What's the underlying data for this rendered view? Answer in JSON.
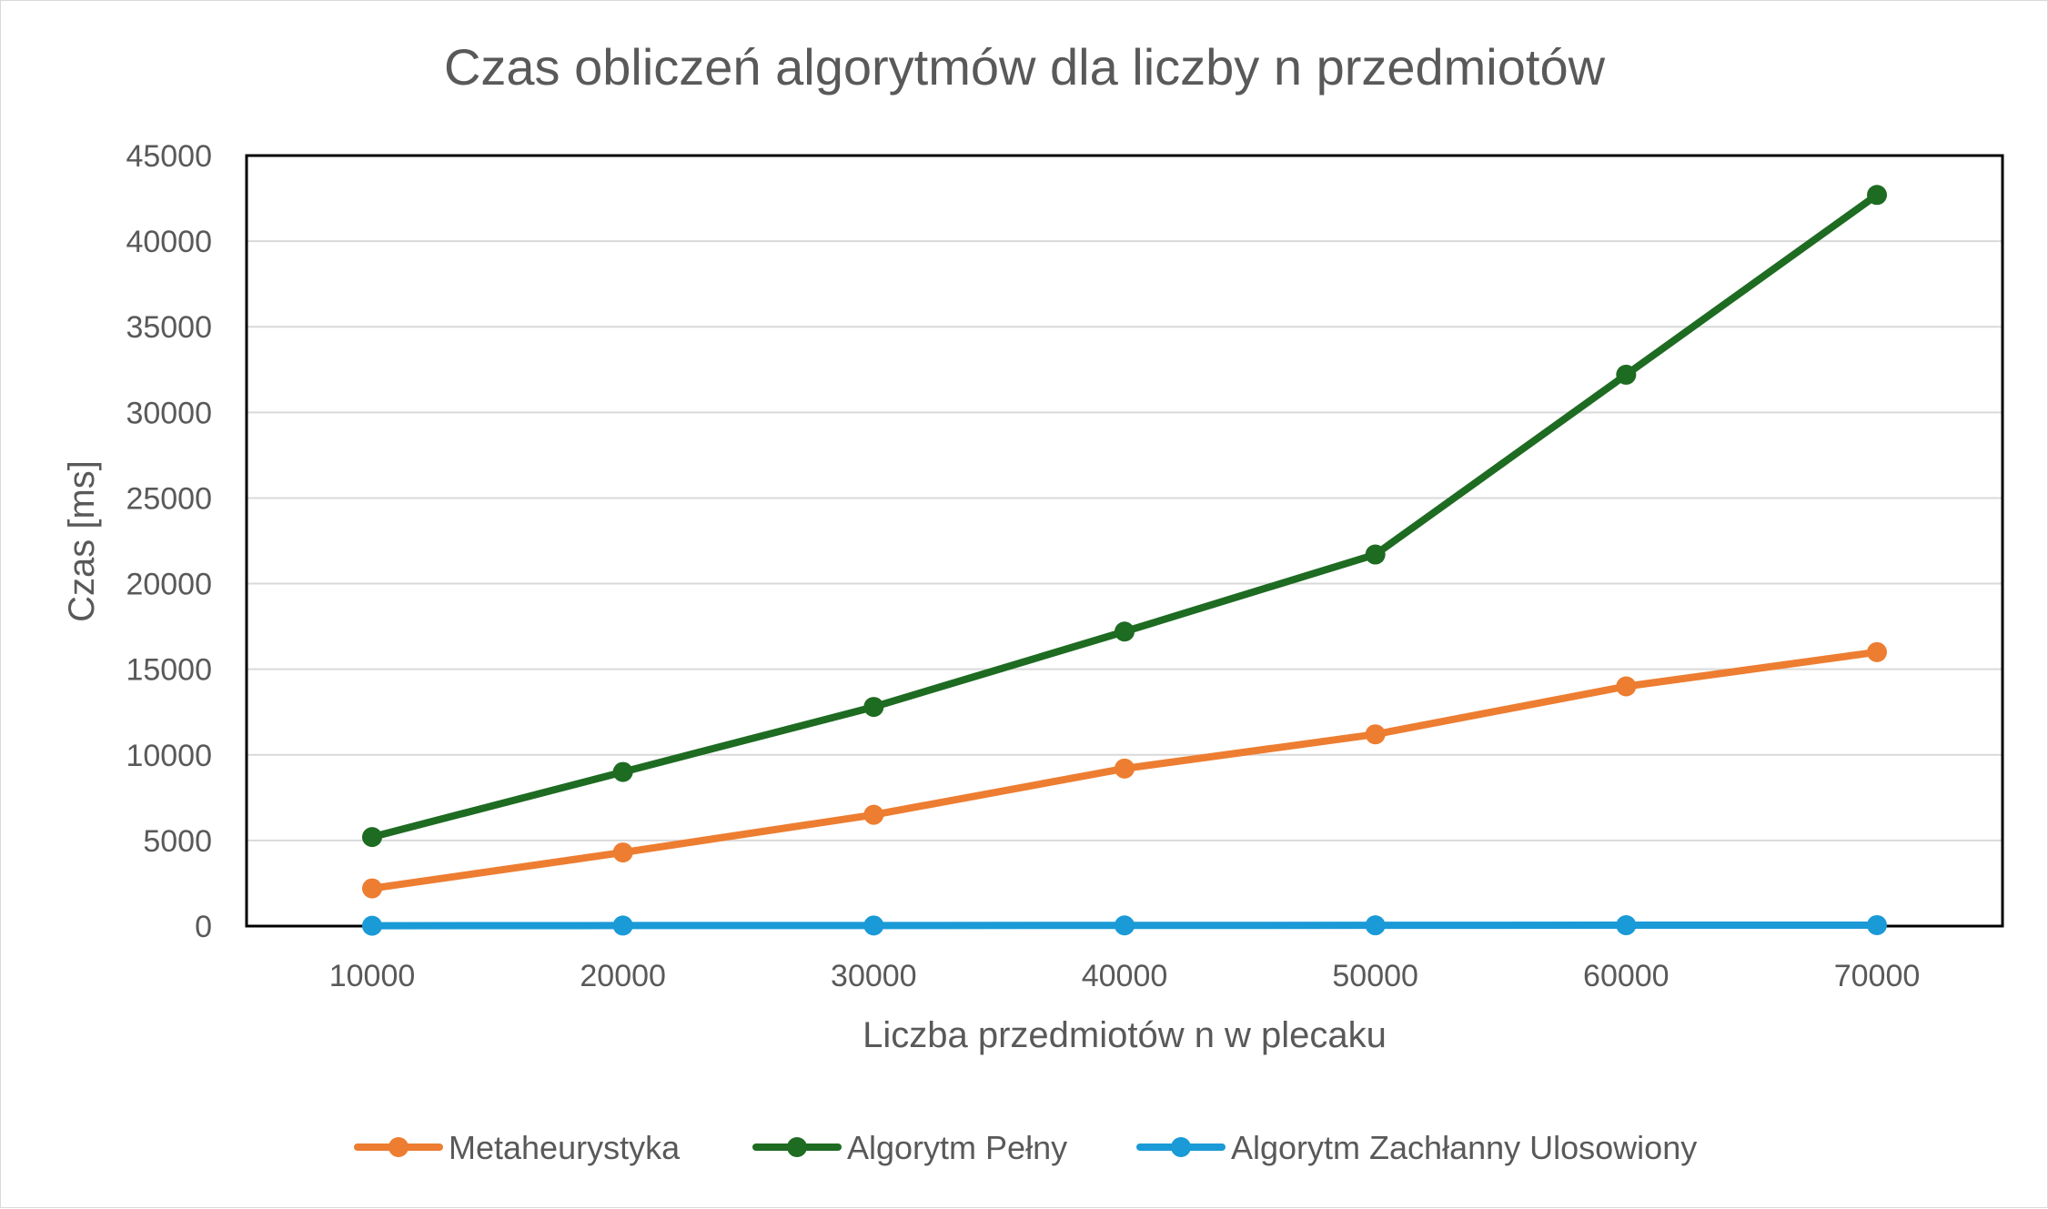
{
  "chart_data": {
    "type": "line",
    "title": "Czas obliczeń algorytmów dla liczby n przedmiotów",
    "xlabel": "Liczba przedmiotów n w plecaku",
    "ylabel": "Czas [ms]",
    "categories": [
      "10000",
      "20000",
      "30000",
      "40000",
      "50000",
      "60000",
      "70000"
    ],
    "ylim": [
      0,
      45000
    ],
    "yticks": [
      "0",
      "5000",
      "10000",
      "15000",
      "20000",
      "25000",
      "30000",
      "35000",
      "40000",
      "45000"
    ],
    "grid": true,
    "legend_position": "bottom",
    "series": [
      {
        "name": "Metaheurystyka",
        "color": "#ed7d31",
        "values": [
          2200,
          4300,
          6500,
          9200,
          11200,
          14000,
          16000
        ]
      },
      {
        "name": "Algorytm Pełny",
        "color": "#1e6b22",
        "values": [
          5200,
          9000,
          12800,
          17200,
          21700,
          32200,
          42700
        ]
      },
      {
        "name": "Algorytm Zachłanny Ulosowiony",
        "color": "#1a9ad6",
        "values": [
          20,
          30,
          35,
          40,
          45,
          50,
          55
        ]
      }
    ]
  }
}
